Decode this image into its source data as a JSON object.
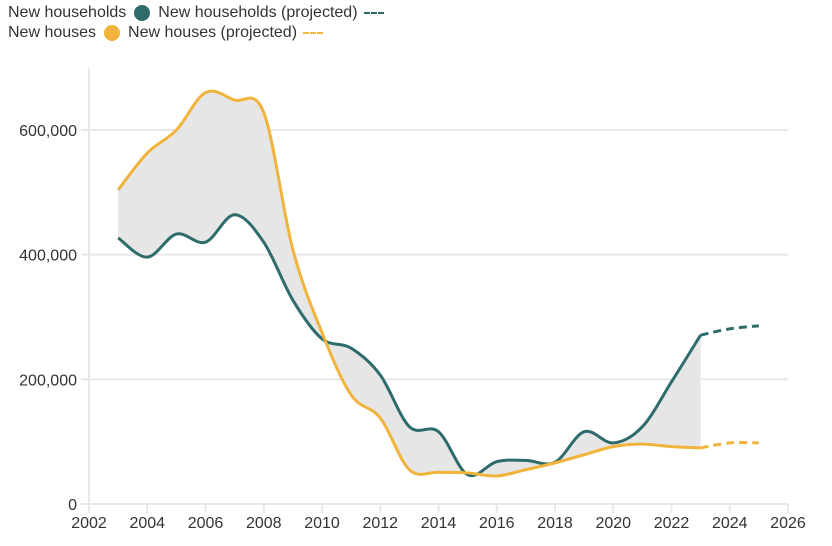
{
  "chart_data": {
    "type": "line",
    "title": "",
    "xlabel": "",
    "ylabel": "",
    "xlim": [
      2002,
      2026
    ],
    "ylim": [
      0,
      700000
    ],
    "x_ticks": [
      "2002",
      "2004",
      "2006",
      "2008",
      "2010",
      "2012",
      "2014",
      "2016",
      "2018",
      "2020",
      "2022",
      "2024",
      "2026"
    ],
    "x_tick_values": [
      2002,
      2004,
      2006,
      2008,
      2010,
      2012,
      2014,
      2016,
      2018,
      2020,
      2022,
      2024,
      2026
    ],
    "y_ticks": [
      "0",
      "200,000",
      "400,000",
      "600,000"
    ],
    "y_tick_values": [
      0,
      200000,
      400000,
      600000
    ],
    "grid": true,
    "legend_position": "top-left",
    "shaded_gap_between_series": true,
    "series": [
      {
        "name": "New households",
        "color": "#2e6b6b",
        "x": [
          2003,
          2004,
          2005,
          2006,
          2007,
          2008,
          2009,
          2010,
          2011,
          2012,
          2013,
          2014,
          2015,
          2016,
          2017,
          2018,
          2019,
          2020,
          2021,
          2022,
          2023
        ],
        "values": [
          427000,
          396000,
          433000,
          420000,
          464000,
          420000,
          327000,
          265000,
          250000,
          207000,
          124000,
          116000,
          47000,
          68000,
          70000,
          67000,
          116000,
          98000,
          124000,
          196000,
          271000
        ]
      },
      {
        "name": "New households (projected)",
        "color": "#2e6b6b",
        "dashed": true,
        "x": [
          2023,
          2024,
          2025
        ],
        "values": [
          271000,
          281000,
          286000
        ]
      },
      {
        "name": "New houses",
        "color": "#f0b43c",
        "x": [
          2003,
          2004,
          2005,
          2006,
          2007,
          2008,
          2009,
          2010,
          2011,
          2012,
          2013,
          2014,
          2015,
          2016,
          2017,
          2018,
          2019,
          2020,
          2021,
          2022,
          2023
        ],
        "values": [
          504000,
          563000,
          600000,
          660000,
          648000,
          628000,
          408000,
          275000,
          175000,
          138000,
          55000,
          51000,
          50000,
          45000,
          55000,
          66000,
          79000,
          92000,
          96000,
          92000,
          90000
        ]
      },
      {
        "name": "New houses (projected)",
        "color": "#f0b43c",
        "dashed": true,
        "x": [
          2023,
          2024,
          2025
        ],
        "values": [
          90000,
          98000,
          98000
        ]
      }
    ]
  },
  "legend": {
    "row1": {
      "solid_label": "New households",
      "projected_label": "New households (projected)",
      "color": "#2e6b6b"
    },
    "row2": {
      "solid_label": "New houses",
      "projected_label": "New houses (projected)",
      "color": "#f0b43c"
    }
  }
}
